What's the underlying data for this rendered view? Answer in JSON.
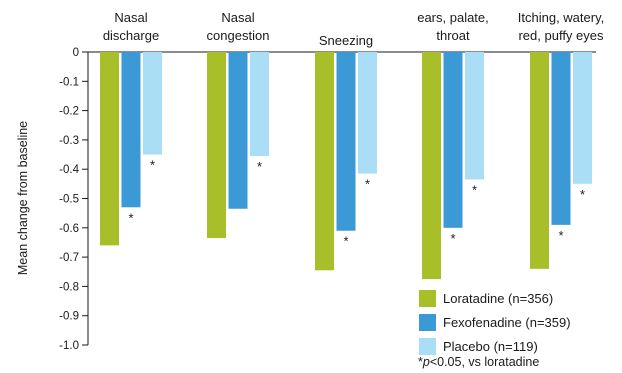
{
  "chart_data": {
    "type": "bar",
    "title": "",
    "xlabel": "",
    "ylabel": "Mean change from baseline",
    "ylim": [
      -1.0,
      0
    ],
    "yticks": [
      "0",
      "-0.1",
      "-0.2",
      "-0.3",
      "-0.4",
      "-0.5",
      "-0.6",
      "-0.7",
      "-0.8",
      "-0.9",
      "-1.0"
    ],
    "categories": [
      [
        "Nasal",
        "discharge"
      ],
      [
        "Nasal",
        "congestion"
      ],
      [
        "Sneezing"
      ],
      [
        "ears, palate,",
        "throat"
      ],
      [
        "Itching, watery,",
        "red, puffy eyes"
      ]
    ],
    "series": [
      {
        "name": "Loratadine (n=356)",
        "color": "#a8bf2a",
        "values": [
          -0.66,
          -0.635,
          -0.745,
          -0.775,
          -0.74
        ],
        "significant": [
          false,
          false,
          false,
          false,
          false
        ]
      },
      {
        "name": "Fexofenadine (n=359)",
        "color": "#3b9ad6",
        "values": [
          -0.53,
          -0.535,
          -0.61,
          -0.6,
          -0.59
        ],
        "significant": [
          true,
          false,
          true,
          true,
          true
        ]
      },
      {
        "name": "Placebo (n=119)",
        "color": "#a9def6",
        "values": [
          -0.35,
          -0.355,
          -0.415,
          -0.435,
          -0.45
        ],
        "significant": [
          true,
          true,
          true,
          true,
          true
        ]
      }
    ],
    "significance_marker": "*",
    "footnote": {
      "prefix": "*",
      "italic": "p",
      "suffix": "<0.05, vs loratadine"
    },
    "legend_position": "bottom-right",
    "grid": false
  }
}
